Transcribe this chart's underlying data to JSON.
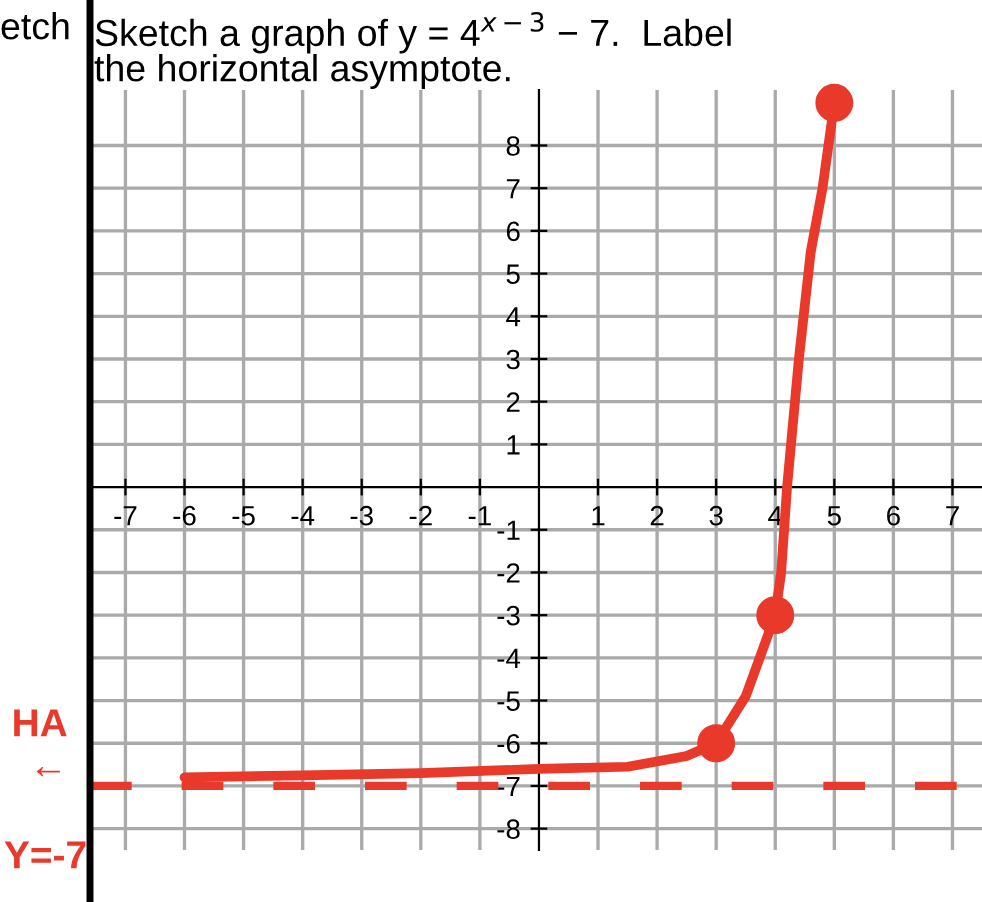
{
  "chart_data": {
    "type": "line",
    "title": "Sketch a graph of y = 4$^{x−3}$ − 7.  Label\nthe horizontal asymptote.",
    "annotations": [
      "etch",
      "HA\n←"
    ],
    "series": [
      {
        "color": "#e8392b",
        "x": [
          -6,
          -4,
          -2,
          0,
          1.5,
          2.5,
          3,
          3.5,
          4,
          4.1,
          4.2,
          4.4,
          4.6,
          4.8,
          5
        ],
        "values": [
          -6.8,
          -6.75,
          -6.7,
          -6.6,
          -6.55,
          -6.3,
          -6,
          -4.9,
          -3,
          -2,
          0,
          3,
          5.5,
          7,
          9
        ],
        "marker": "none"
      },
      {
        "type": "scatter",
        "color": "#e8392b",
        "x": [
          3,
          4,
          5
        ],
        "values": [
          -6,
          -3,
          9
        ],
        "marker": "circle"
      }
    ],
    "ref_lines": [
      {
        "axis": "y",
        "value": -7,
        "label": "Y=-7",
        "color": "#e8392b",
        "line_style": "dashed"
      }
    ],
    "xlim": [
      -7.6,
      7.5
    ],
    "ylim": [
      -8.5,
      9.3
    ],
    "xticks": [
      -7,
      -6,
      -5,
      -4,
      -3,
      -2,
      -1,
      1,
      2,
      3,
      4,
      5,
      6,
      7
    ],
    "yticks": [
      -8,
      -7,
      -6,
      -5,
      -4,
      -3,
      -2,
      -1,
      1,
      2,
      3,
      4,
      5,
      6,
      7,
      8
    ],
    "grid": true
  }
}
